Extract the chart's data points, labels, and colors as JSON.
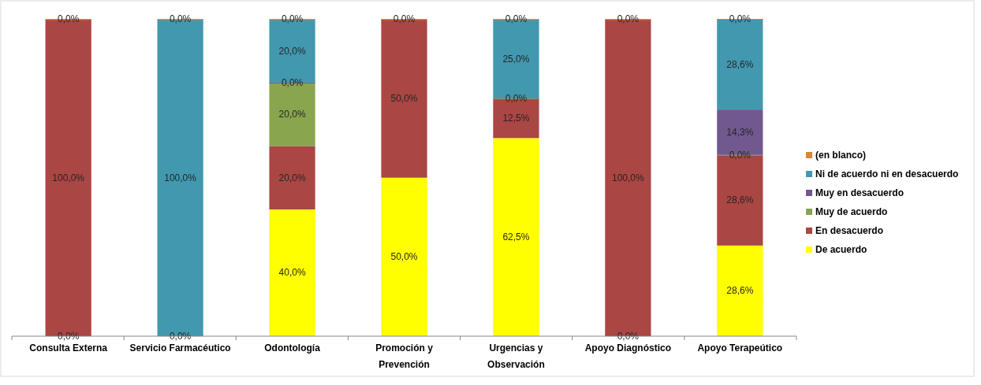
{
  "chart_data": {
    "type": "bar",
    "stacked": true,
    "legend": "right",
    "ylim": [
      0,
      100.1
    ],
    "tick_labels": "x",
    "categories": [
      "Consulta Externa",
      "Servicio Farmacéutico",
      "Odontología",
      "Promoción y Prevención",
      "Urgencias y Observación",
      "Apoyo Diagnóstico",
      "Apoyo Terapeútico"
    ],
    "series": [
      {
        "name": "De acuerdo",
        "color": "#ffff00",
        "values": [
          0,
          0,
          40,
          50,
          62.5,
          0,
          28.6
        ],
        "value_labels": [
          "0,0%",
          "0,0%",
          "40,0%",
          "50,0%",
          "62,5%",
          "0,0%",
          "28,6%"
        ]
      },
      {
        "name": "En desacuerdo",
        "color": "#aa4643",
        "values": [
          100,
          null,
          20,
          50,
          12.5,
          100,
          28.6
        ],
        "value_labels": [
          "100,0%",
          null,
          "20,0%",
          "50,0%",
          "12,5%",
          "100,0%",
          "28,6%"
        ]
      },
      {
        "name": "Muy de acuerdo",
        "color": "#89a54e",
        "values": [
          null,
          null,
          20,
          null,
          0,
          null,
          0
        ],
        "value_labels": [
          null,
          null,
          "20,0%",
          null,
          "0,0%",
          null,
          "0,0%"
        ]
      },
      {
        "name": "Muy en desacuerdo",
        "color": "#71588f",
        "values": [
          null,
          null,
          0,
          null,
          null,
          null,
          14.3
        ],
        "value_labels": [
          null,
          null,
          "0,0%",
          null,
          null,
          null,
          "14,3%"
        ]
      },
      {
        "name": "Ni de acuerdo ni en desacuerdo",
        "color": "#4198af",
        "values": [
          null,
          100,
          20,
          null,
          25,
          null,
          28.6
        ],
        "value_labels": [
          null,
          "100,0%",
          "20,0%",
          null,
          "25,0%",
          null,
          "28,6%"
        ]
      },
      {
        "name": "(en blanco)",
        "color": "#db843d",
        "values": [
          0,
          0,
          0,
          0,
          0,
          0,
          0
        ],
        "value_labels": [
          "0,0%",
          "0,0%",
          "0,0%",
          "0,0%",
          "0,0%",
          "0,0%",
          "0,0%"
        ]
      }
    ]
  }
}
